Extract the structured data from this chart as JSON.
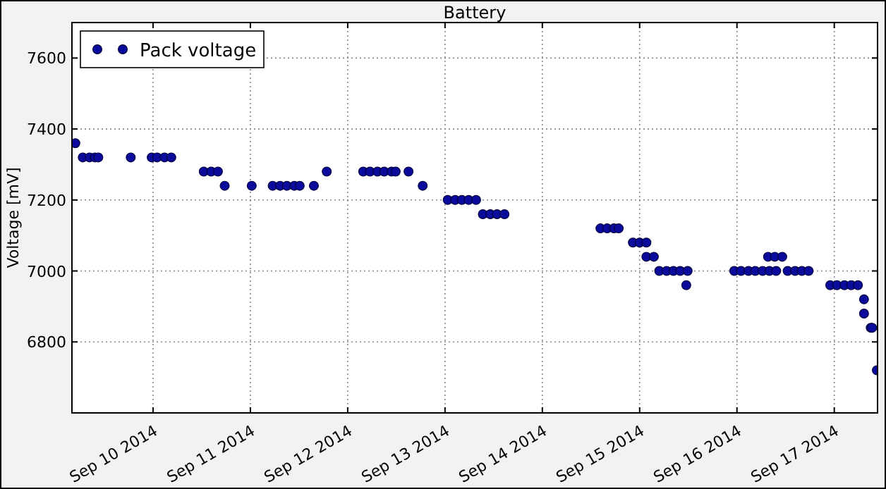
{
  "chart_data": {
    "type": "scatter",
    "title": "Battery",
    "ylabel": "Voltage [mV]",
    "xlim": [
      "2014-09-09T04:00",
      "2014-09-17T10:40"
    ],
    "xticks": [
      {
        "value": "2014-09-10",
        "label": "Sep 10 2014"
      },
      {
        "value": "2014-09-11",
        "label": "Sep 11 2014"
      },
      {
        "value": "2014-09-12",
        "label": "Sep 12 2014"
      },
      {
        "value": "2014-09-13",
        "label": "Sep 13 2014"
      },
      {
        "value": "2014-09-14",
        "label": "Sep 14 2014"
      },
      {
        "value": "2014-09-15",
        "label": "Sep 15 2014"
      },
      {
        "value": "2014-09-16",
        "label": "Sep 16 2014"
      },
      {
        "value": "2014-09-17",
        "label": "Sep 17 2014"
      }
    ],
    "ylim": [
      6600,
      7700
    ],
    "yticks": [
      6800,
      7000,
      7200,
      7400,
      7600
    ],
    "grid": true,
    "legend": "top left",
    "marker": "circle",
    "series": [
      {
        "name": "Pack voltage",
        "color": "#0a0a9c",
        "x": [
          "2014-09-09T04:50",
          "2014-09-09T06:40",
          "2014-09-09T08:20",
          "2014-09-09T09:40",
          "2014-09-09T10:30",
          "2014-09-09T18:30",
          "2014-09-09T23:40",
          "2014-09-10T01:00",
          "2014-09-10T02:50",
          "2014-09-10T04:30",
          "2014-09-10T12:30",
          "2014-09-10T14:20",
          "2014-09-10T16:00",
          "2014-09-10T17:40",
          "2014-09-11T00:20",
          "2014-09-11T05:30",
          "2014-09-11T07:20",
          "2014-09-11T09:00",
          "2014-09-11T10:50",
          "2014-09-11T12:10",
          "2014-09-11T15:40",
          "2014-09-11T18:50",
          "2014-09-12T03:50",
          "2014-09-12T05:30",
          "2014-09-12T07:20",
          "2014-09-12T09:00",
          "2014-09-12T10:50",
          "2014-09-12T11:50",
          "2014-09-12T15:00",
          "2014-09-12T18:30",
          "2014-09-13T00:40",
          "2014-09-13T02:30",
          "2014-09-13T04:10",
          "2014-09-13T05:50",
          "2014-09-13T07:40",
          "2014-09-13T09:20",
          "2014-09-13T11:10",
          "2014-09-13T12:50",
          "2014-09-13T14:40",
          "2014-09-14T14:20",
          "2014-09-14T16:00",
          "2014-09-14T17:40",
          "2014-09-14T18:50",
          "2014-09-14T22:20",
          "2014-09-15T00:00",
          "2014-09-15T01:40",
          "2014-09-15T01:40",
          "2014-09-15T03:30",
          "2014-09-15T04:50",
          "2014-09-15T06:40",
          "2014-09-15T08:20",
          "2014-09-15T10:00",
          "2014-09-15T11:50",
          "2014-09-15T11:30",
          "2014-09-15T23:20",
          "2014-09-16T01:00",
          "2014-09-16T02:50",
          "2014-09-16T04:30",
          "2014-09-16T06:20",
          "2014-09-16T07:40",
          "2014-09-16T08:00",
          "2014-09-16T09:20",
          "2014-09-16T09:40",
          "2014-09-16T11:10",
          "2014-09-16T12:30",
          "2014-09-16T14:20",
          "2014-09-16T16:00",
          "2014-09-16T17:40",
          "2014-09-16T23:00",
          "2014-09-17T00:40",
          "2014-09-17T02:30",
          "2014-09-17T04:10",
          "2014-09-17T05:50",
          "2014-09-17T07:20",
          "2014-09-17T07:20",
          "2014-09-17T09:00",
          "2014-09-17T09:20",
          "2014-09-17T10:30"
        ],
        "values": [
          7360,
          7320,
          7320,
          7320,
          7320,
          7320,
          7320,
          7320,
          7320,
          7320,
          7280,
          7280,
          7280,
          7240,
          7240,
          7240,
          7240,
          7240,
          7240,
          7240,
          7240,
          7280,
          7280,
          7280,
          7280,
          7280,
          7280,
          7280,
          7280,
          7240,
          7200,
          7200,
          7200,
          7200,
          7200,
          7160,
          7160,
          7160,
          7160,
          7120,
          7120,
          7120,
          7120,
          7080,
          7080,
          7080,
          7040,
          7040,
          7000,
          7000,
          7000,
          7000,
          7000,
          6960,
          7000,
          7000,
          7000,
          7000,
          7000,
          7040,
          7000,
          7040,
          7000,
          7040,
          7000,
          7000,
          7000,
          7000,
          6960,
          6960,
          6960,
          6960,
          6960,
          6920,
          6880,
          6840,
          6840,
          6720
        ]
      }
    ]
  }
}
